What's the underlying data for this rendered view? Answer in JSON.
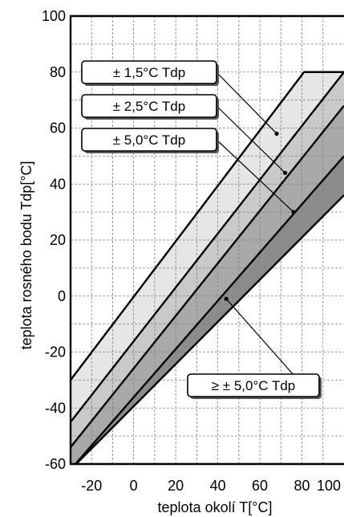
{
  "chart_data": {
    "type": "area",
    "title": "",
    "xlabel": "teplota okolí  T[°C]",
    "ylabel": "teplota rosného bodu  Tdp[°C]",
    "xlim": [
      -30,
      100
    ],
    "ylim": [
      -60,
      100
    ],
    "xticks": [
      "-20",
      "0",
      "20",
      "40",
      "60",
      "80",
      "100"
    ],
    "yticks": [
      "100",
      "80",
      "60",
      "40",
      "20",
      "0",
      "-20",
      "-40",
      "-60"
    ],
    "grid": true,
    "series": [
      {
        "name": "± 1,5°C Tdp",
        "x": [
          -30,
          81,
          100
        ],
        "y": [
          -30,
          80,
          80
        ],
        "fill": "#e6e6e6"
      },
      {
        "name": "± 2,5°C Tdp",
        "x": [
          -30,
          100
        ],
        "y": [
          -45,
          80
        ],
        "fill": "#c9c9c9"
      },
      {
        "name": "± 5,0°C Tdp",
        "x": [
          -30,
          100
        ],
        "y": [
          -54,
          68
        ],
        "fill": "#a9a9a9"
      },
      {
        "name": "≥ ± 5,0°C Tdp",
        "x": [
          -30,
          100
        ],
        "y": [
          -62,
          50
        ],
        "fill": "#8c8c8c"
      },
      {
        "name": "",
        "x": [
          -30,
          100
        ],
        "y": [
          -62,
          36
        ]
      }
    ],
    "annotations": [
      {
        "text": "± 1,5°C Tdp",
        "point": [
          68,
          58
        ]
      },
      {
        "text": "± 2,5°C Tdp",
        "point": [
          72,
          44
        ]
      },
      {
        "text": "± 5,0°C Tdp",
        "point": [
          76,
          30
        ]
      },
      {
        "text": "≥ ± 5,0°C Tdp",
        "point": [
          44,
          -1
        ]
      }
    ],
    "colors": {
      "grid": "#808080",
      "lines": "#000000",
      "background": "#ffffff"
    }
  }
}
